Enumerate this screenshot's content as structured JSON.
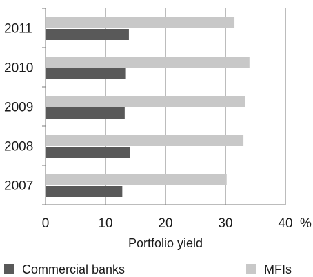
{
  "chart_data": {
    "type": "bar",
    "orientation": "horizontal",
    "categories": [
      "2011",
      "2010",
      "2009",
      "2008",
      "2007"
    ],
    "series": [
      {
        "name": "Commercial banks",
        "color": "#595959",
        "values": [
          13.9,
          13.4,
          13.2,
          14.1,
          12.8
        ]
      },
      {
        "name": "MFIs",
        "color": "#c8c8c8",
        "values": [
          31.5,
          34.0,
          33.3,
          33.0,
          30.2
        ]
      }
    ],
    "xlabel": "Portfolio yield",
    "x_unit": "%",
    "xlim": [
      0,
      40
    ],
    "x_ticks": [
      "0",
      "10",
      "20",
      "30",
      "40"
    ],
    "grid": true,
    "legend_position": "bottom"
  }
}
